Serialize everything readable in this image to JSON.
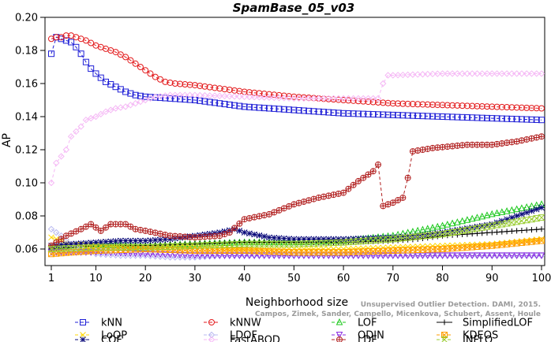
{
  "chart_data": {
    "type": "line",
    "title": "SpamBase_05_v03",
    "xlabel": "Neighborhood size",
    "ylabel": "AP",
    "xlim": [
      1,
      100
    ],
    "ylim": [
      0.05,
      0.2
    ],
    "xticks": [
      1,
      10,
      20,
      30,
      40,
      50,
      60,
      70,
      80,
      90,
      100
    ],
    "yticks": [
      0.06,
      0.08,
      0.1,
      0.12,
      0.14,
      0.16,
      0.18,
      0.2
    ],
    "ytick_labels": [
      "0.06",
      "0.08",
      "0.10",
      "0.12",
      "0.14",
      "0.16",
      "0.18",
      "0.20"
    ],
    "grid": false,
    "legend_position": "bottom",
    "watermark": [
      "Unsupervised Outlier Detection. DAMI, 2015.",
      "Campos, Zimek, Sander, Campello, Micenkova, Schubert, Assent, Houle"
    ],
    "series": [
      {
        "name": "kNN",
        "color": "#1f1fd6",
        "marker": "square",
        "dash": "4,3",
        "points": [
          [
            1,
            0.178
          ],
          [
            2,
            0.188
          ],
          [
            3,
            0.187
          ],
          [
            4,
            0.186
          ],
          [
            5,
            0.185
          ],
          [
            6,
            0.182
          ],
          [
            7,
            0.178
          ],
          [
            8,
            0.173
          ],
          [
            9,
            0.169
          ],
          [
            10,
            0.166
          ],
          [
            12,
            0.161
          ],
          [
            14,
            0.158
          ],
          [
            16,
            0.155
          ],
          [
            18,
            0.153
          ],
          [
            20,
            0.152
          ],
          [
            25,
            0.151
          ],
          [
            30,
            0.15
          ],
          [
            40,
            0.146
          ],
          [
            50,
            0.144
          ],
          [
            60,
            0.142
          ],
          [
            70,
            0.141
          ],
          [
            80,
            0.14
          ],
          [
            90,
            0.139
          ],
          [
            100,
            0.138
          ]
        ]
      },
      {
        "name": "kNNW",
        "color": "#e31a1c",
        "marker": "circle",
        "dash": "4,3",
        "points": [
          [
            1,
            0.187
          ],
          [
            2,
            0.188
          ],
          [
            3,
            0.188
          ],
          [
            4,
            0.189
          ],
          [
            5,
            0.189
          ],
          [
            6,
            0.188
          ],
          [
            8,
            0.186
          ],
          [
            10,
            0.183
          ],
          [
            12,
            0.181
          ],
          [
            14,
            0.179
          ],
          [
            16,
            0.176
          ],
          [
            18,
            0.172
          ],
          [
            20,
            0.168
          ],
          [
            22,
            0.164
          ],
          [
            24,
            0.161
          ],
          [
            26,
            0.16
          ],
          [
            30,
            0.159
          ],
          [
            40,
            0.155
          ],
          [
            50,
            0.152
          ],
          [
            60,
            0.15
          ],
          [
            70,
            0.148
          ],
          [
            80,
            0.147
          ],
          [
            90,
            0.146
          ],
          [
            100,
            0.145
          ]
        ]
      },
      {
        "name": "LOF",
        "color": "#1ec81e",
        "marker": "triangle",
        "dash": "4,3",
        "points": [
          [
            1,
            0.061
          ],
          [
            5,
            0.062
          ],
          [
            10,
            0.063
          ],
          [
            20,
            0.062
          ],
          [
            30,
            0.063
          ],
          [
            40,
            0.064
          ],
          [
            50,
            0.064
          ],
          [
            60,
            0.065
          ],
          [
            70,
            0.068
          ],
          [
            80,
            0.074
          ],
          [
            90,
            0.081
          ],
          [
            100,
            0.087
          ]
        ]
      },
      {
        "name": "SimplifiedLOF",
        "color": "#000000",
        "marker": "plus",
        "dash": "",
        "points": [
          [
            1,
            0.06
          ],
          [
            10,
            0.062
          ],
          [
            20,
            0.062
          ],
          [
            30,
            0.063
          ],
          [
            40,
            0.064
          ],
          [
            50,
            0.064
          ],
          [
            60,
            0.064
          ],
          [
            70,
            0.065
          ],
          [
            75,
            0.066
          ],
          [
            80,
            0.068
          ],
          [
            85,
            0.069
          ],
          [
            90,
            0.07
          ],
          [
            100,
            0.072
          ]
        ]
      },
      {
        "name": "LoOP",
        "color": "#ffd700",
        "marker": "x",
        "dash": "4,3",
        "points": [
          [
            1,
            0.067
          ],
          [
            5,
            0.063
          ],
          [
            10,
            0.062
          ],
          [
            20,
            0.061
          ],
          [
            30,
            0.061
          ],
          [
            40,
            0.06
          ],
          [
            50,
            0.06
          ],
          [
            60,
            0.06
          ],
          [
            70,
            0.061
          ],
          [
            80,
            0.062
          ],
          [
            90,
            0.063
          ],
          [
            100,
            0.066
          ]
        ]
      },
      {
        "name": "LDOF",
        "color": "#b8b8f0",
        "marker": "diamond",
        "dash": "4,3",
        "points": [
          [
            1,
            0.072
          ],
          [
            3,
            0.068
          ],
          [
            5,
            0.063
          ],
          [
            8,
            0.059
          ],
          [
            10,
            0.057
          ],
          [
            15,
            0.056
          ],
          [
            20,
            0.056
          ],
          [
            25,
            0.055
          ],
          [
            30,
            0.055
          ],
          [
            35,
            0.056
          ],
          [
            40,
            0.056
          ],
          [
            50,
            0.056
          ],
          [
            60,
            0.056
          ],
          [
            70,
            0.056
          ],
          [
            80,
            0.056
          ],
          [
            90,
            0.056
          ],
          [
            100,
            0.056
          ]
        ]
      },
      {
        "name": "ODIN",
        "color": "#8a2be2",
        "marker": "triangle-down",
        "dash": "4,3",
        "points": [
          [
            1,
            0.058
          ],
          [
            5,
            0.058
          ],
          [
            10,
            0.058
          ],
          [
            20,
            0.057
          ],
          [
            30,
            0.056
          ],
          [
            40,
            0.056
          ],
          [
            50,
            0.056
          ],
          [
            60,
            0.056
          ],
          [
            70,
            0.056
          ],
          [
            80,
            0.056
          ],
          [
            90,
            0.056
          ],
          [
            100,
            0.056
          ]
        ]
      },
      {
        "name": "KDEOS",
        "color": "#ff9e00",
        "marker": "square-x",
        "dash": "4,3",
        "points": [
          [
            1,
            0.057
          ],
          [
            5,
            0.058
          ],
          [
            10,
            0.059
          ],
          [
            20,
            0.06
          ],
          [
            30,
            0.059
          ],
          [
            40,
            0.059
          ],
          [
            50,
            0.058
          ],
          [
            60,
            0.058
          ],
          [
            70,
            0.059
          ],
          [
            80,
            0.06
          ],
          [
            90,
            0.062
          ],
          [
            100,
            0.065
          ]
        ]
      },
      {
        "name": "COF",
        "color": "#0a0a7a",
        "marker": "asterisk",
        "dash": "4,3",
        "points": [
          [
            1,
            0.062
          ],
          [
            5,
            0.063
          ],
          [
            10,
            0.064
          ],
          [
            15,
            0.065
          ],
          [
            20,
            0.065
          ],
          [
            25,
            0.066
          ],
          [
            30,
            0.068
          ],
          [
            35,
            0.07
          ],
          [
            38,
            0.072
          ],
          [
            40,
            0.07
          ],
          [
            45,
            0.067
          ],
          [
            50,
            0.066
          ],
          [
            60,
            0.066
          ],
          [
            70,
            0.067
          ],
          [
            75,
            0.068
          ],
          [
            80,
            0.07
          ],
          [
            90,
            0.075
          ],
          [
            100,
            0.085
          ]
        ]
      },
      {
        "name": "FastABOD",
        "color": "#f5b8f5",
        "marker": "diamond",
        "dash": "4,3",
        "points": [
          [
            1,
            0.1
          ],
          [
            2,
            0.112
          ],
          [
            3,
            0.116
          ],
          [
            4,
            0.12
          ],
          [
            5,
            0.128
          ],
          [
            6,
            0.131
          ],
          [
            7,
            0.134
          ],
          [
            8,
            0.138
          ],
          [
            10,
            0.14
          ],
          [
            12,
            0.143
          ],
          [
            14,
            0.145
          ],
          [
            16,
            0.146
          ],
          [
            18,
            0.148
          ],
          [
            20,
            0.15
          ],
          [
            22,
            0.152
          ],
          [
            25,
            0.153
          ],
          [
            30,
            0.153
          ],
          [
            40,
            0.152
          ],
          [
            50,
            0.151
          ],
          [
            60,
            0.151
          ],
          [
            66,
            0.151
          ],
          [
            67,
            0.151
          ],
          [
            68,
            0.16
          ],
          [
            69,
            0.165
          ],
          [
            70,
            0.165
          ],
          [
            80,
            0.166
          ],
          [
            90,
            0.166
          ],
          [
            100,
            0.166
          ]
        ]
      },
      {
        "name": "LDF",
        "color": "#b22222",
        "marker": "circle-plus",
        "dash": "4,3",
        "points": [
          [
            1,
            0.062
          ],
          [
            4,
            0.068
          ],
          [
            7,
            0.072
          ],
          [
            9,
            0.075
          ],
          [
            11,
            0.071
          ],
          [
            13,
            0.075
          ],
          [
            16,
            0.075
          ],
          [
            18,
            0.072
          ],
          [
            20,
            0.071
          ],
          [
            25,
            0.068
          ],
          [
            30,
            0.067
          ],
          [
            35,
            0.068
          ],
          [
            37,
            0.07
          ],
          [
            40,
            0.078
          ],
          [
            45,
            0.081
          ],
          [
            50,
            0.087
          ],
          [
            55,
            0.091
          ],
          [
            60,
            0.094
          ],
          [
            63,
            0.101
          ],
          [
            66,
            0.107
          ],
          [
            67,
            0.111
          ],
          [
            68,
            0.086
          ],
          [
            70,
            0.088
          ],
          [
            72,
            0.091
          ],
          [
            73,
            0.103
          ],
          [
            74,
            0.119
          ],
          [
            78,
            0.121
          ],
          [
            85,
            0.123
          ],
          [
            90,
            0.123
          ],
          [
            95,
            0.125
          ],
          [
            100,
            0.128
          ]
        ]
      },
      {
        "name": "INFLO",
        "color": "#9acd32",
        "marker": "hourglass",
        "dash": "4,3",
        "points": [
          [
            1,
            0.06
          ],
          [
            10,
            0.061
          ],
          [
            20,
            0.061
          ],
          [
            30,
            0.062
          ],
          [
            40,
            0.063
          ],
          [
            50,
            0.063
          ],
          [
            60,
            0.064
          ],
          [
            70,
            0.066
          ],
          [
            80,
            0.069
          ],
          [
            90,
            0.074
          ],
          [
            100,
            0.079
          ]
        ]
      }
    ]
  }
}
